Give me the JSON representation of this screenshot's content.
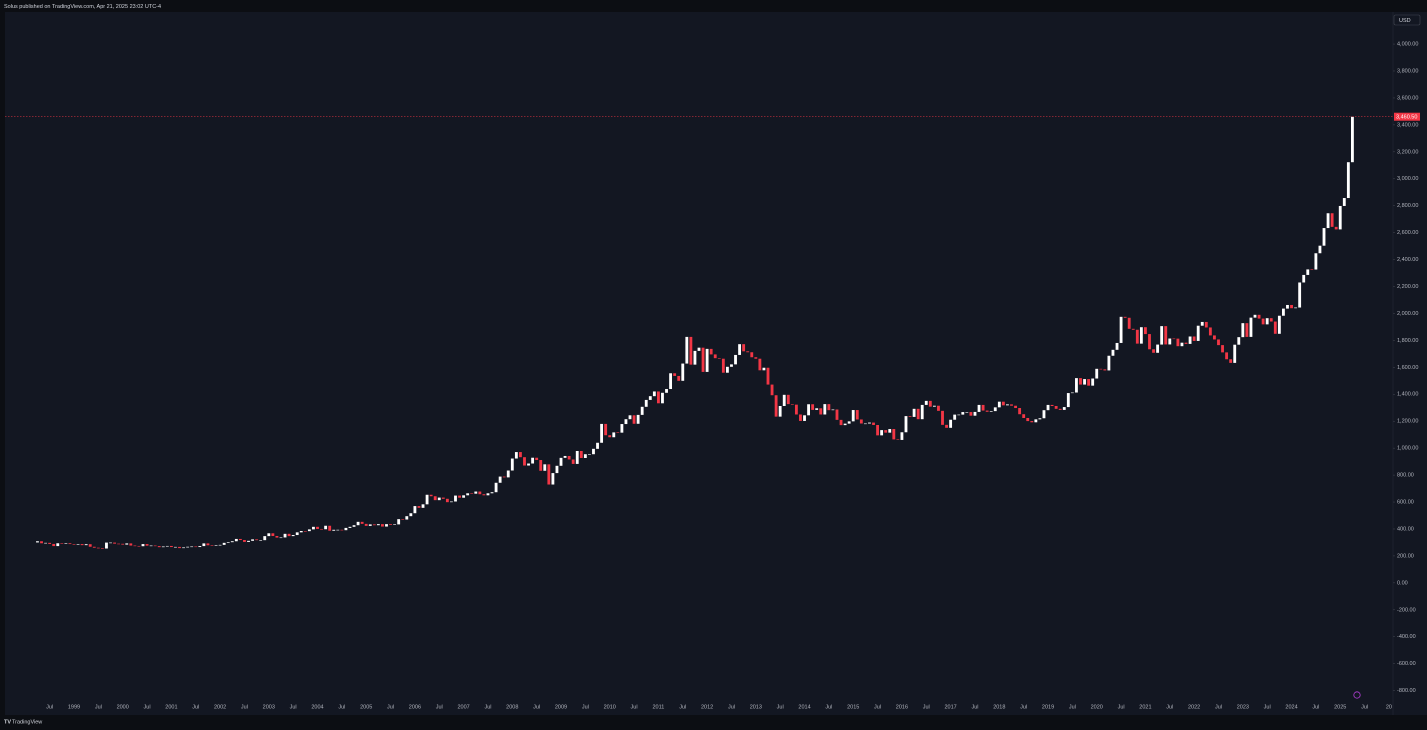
{
  "header": {
    "text": "Solus published on TradingView.com, Apr 21, 2025 23:02 UTC-4"
  },
  "footer": {
    "brand": "TradingView"
  },
  "chart_data": {
    "type": "candlestick",
    "currency": "USD",
    "up_color": "#ffffff",
    "down_color": "#f23645",
    "last_price": {
      "value": 3460.5,
      "label": "3,460.50"
    },
    "xlim": [
      "1997-08",
      "2026-02"
    ],
    "ylim": [
      -981,
      4238
    ],
    "yticks": [
      {
        "value": 4000,
        "label": "4,000.00"
      },
      {
        "value": 3800,
        "label": "3,800.00"
      },
      {
        "value": 3600,
        "label": "3,600.00"
      },
      {
        "value": 3400,
        "label": "3,400.00"
      },
      {
        "value": 3200,
        "label": "3,200.00"
      },
      {
        "value": 3000,
        "label": "3,000.00"
      },
      {
        "value": 2800,
        "label": "2,800.00"
      },
      {
        "value": 2600,
        "label": "2,600.00"
      },
      {
        "value": 2400,
        "label": "2,400.00"
      },
      {
        "value": 2200,
        "label": "2,200.00"
      },
      {
        "value": 2000,
        "label": "2,000.00"
      },
      {
        "value": 1800,
        "label": "1,800.00"
      },
      {
        "value": 1600,
        "label": "1,600.00"
      },
      {
        "value": 1400,
        "label": "1,400.00"
      },
      {
        "value": 1200,
        "label": "1,200.00"
      },
      {
        "value": 1000,
        "label": "1,000.00"
      },
      {
        "value": 800,
        "label": "800.00"
      },
      {
        "value": 600,
        "label": "600.00"
      },
      {
        "value": 400,
        "label": "400.00"
      },
      {
        "value": 200,
        "label": "200.00"
      },
      {
        "value": 0,
        "label": "0.00"
      },
      {
        "value": -200,
        "label": "-200.00"
      },
      {
        "value": -400,
        "label": "-400.00"
      },
      {
        "value": -600,
        "label": "-600.00"
      },
      {
        "value": -800,
        "label": "-800.00"
      }
    ],
    "xticks": [
      {
        "value": "1998-07",
        "label": "Jul"
      },
      {
        "value": "1999-01",
        "label": "1999"
      },
      {
        "value": "1999-07",
        "label": "Jul"
      },
      {
        "value": "2000-01",
        "label": "2000"
      },
      {
        "value": "2000-07",
        "label": "Jul"
      },
      {
        "value": "2001-01",
        "label": "2001"
      },
      {
        "value": "2001-07",
        "label": "Jul"
      },
      {
        "value": "2002-01",
        "label": "2002"
      },
      {
        "value": "2002-07",
        "label": "Jul"
      },
      {
        "value": "2003-01",
        "label": "2003"
      },
      {
        "value": "2003-07",
        "label": "Jul"
      },
      {
        "value": "2004-01",
        "label": "2004"
      },
      {
        "value": "2004-07",
        "label": "Jul"
      },
      {
        "value": "2005-01",
        "label": "2005"
      },
      {
        "value": "2005-07",
        "label": "Jul"
      },
      {
        "value": "2006-01",
        "label": "2006"
      },
      {
        "value": "2006-07",
        "label": "Jul"
      },
      {
        "value": "2007-01",
        "label": "2007"
      },
      {
        "value": "2007-07",
        "label": "Jul"
      },
      {
        "value": "2008-01",
        "label": "2008"
      },
      {
        "value": "2008-07",
        "label": "Jul"
      },
      {
        "value": "2009-01",
        "label": "2009"
      },
      {
        "value": "2009-07",
        "label": "Jul"
      },
      {
        "value": "2010-01",
        "label": "2010"
      },
      {
        "value": "2010-07",
        "label": "Jul"
      },
      {
        "value": "2011-01",
        "label": "2011"
      },
      {
        "value": "2011-07",
        "label": "Jul"
      },
      {
        "value": "2012-01",
        "label": "2012"
      },
      {
        "value": "2012-07",
        "label": "Jul"
      },
      {
        "value": "2013-01",
        "label": "2013"
      },
      {
        "value": "2013-07",
        "label": "Jul"
      },
      {
        "value": "2014-01",
        "label": "2014"
      },
      {
        "value": "2014-07",
        "label": "Jul"
      },
      {
        "value": "2015-01",
        "label": "2015"
      },
      {
        "value": "2015-07",
        "label": "Jul"
      },
      {
        "value": "2016-01",
        "label": "2016"
      },
      {
        "value": "2016-07",
        "label": "Jul"
      },
      {
        "value": "2017-01",
        "label": "2017"
      },
      {
        "value": "2017-07",
        "label": "Jul"
      },
      {
        "value": "2018-01",
        "label": "2018"
      },
      {
        "value": "2018-07",
        "label": "Jul"
      },
      {
        "value": "2019-01",
        "label": "2019"
      },
      {
        "value": "2019-07",
        "label": "Jul"
      },
      {
        "value": "2020-01",
        "label": "2020"
      },
      {
        "value": "2020-07",
        "label": "Jul"
      },
      {
        "value": "2021-01",
        "label": "2021"
      },
      {
        "value": "2021-07",
        "label": "Jul"
      },
      {
        "value": "2022-01",
        "label": "2022"
      },
      {
        "value": "2022-07",
        "label": "Jul"
      },
      {
        "value": "2023-01",
        "label": "2023"
      },
      {
        "value": "2023-07",
        "label": "Jul"
      },
      {
        "value": "2024-01",
        "label": "2024"
      },
      {
        "value": "2024-07",
        "label": "Jul"
      },
      {
        "value": "2025-01",
        "label": "2025"
      },
      {
        "value": "2025-07",
        "label": "Jul"
      },
      {
        "value": "2026-01",
        "label": "20"
      }
    ],
    "x": [
      "1998-04",
      "1998-05",
      "1998-06",
      "1998-07",
      "1998-08",
      "1998-09",
      "1998-10",
      "1998-11",
      "1998-12",
      "1999-01",
      "1999-02",
      "1999-03",
      "1999-04",
      "1999-05",
      "1999-06",
      "1999-07",
      "1999-08",
      "1999-09",
      "1999-10",
      "1999-11",
      "1999-12",
      "2000-01",
      "2000-02",
      "2000-03",
      "2000-04",
      "2000-05",
      "2000-06",
      "2000-07",
      "2000-08",
      "2000-09",
      "2000-10",
      "2000-11",
      "2000-12",
      "2001-01",
      "2001-02",
      "2001-03",
      "2001-04",
      "2001-05",
      "2001-06",
      "2001-07",
      "2001-08",
      "2001-09",
      "2001-10",
      "2001-11",
      "2001-12",
      "2002-01",
      "2002-02",
      "2002-03",
      "2002-04",
      "2002-05",
      "2002-06",
      "2002-07",
      "2002-08",
      "2002-09",
      "2002-10",
      "2002-11",
      "2002-12",
      "2003-01",
      "2003-02",
      "2003-03",
      "2003-04",
      "2003-05",
      "2003-06",
      "2003-07",
      "2003-08",
      "2003-09",
      "2003-10",
      "2003-11",
      "2003-12",
      "2004-01",
      "2004-02",
      "2004-03",
      "2004-04",
      "2004-05",
      "2004-06",
      "2004-07",
      "2004-08",
      "2004-09",
      "2004-10",
      "2004-11",
      "2004-12",
      "2005-01",
      "2005-02",
      "2005-03",
      "2005-04",
      "2005-05",
      "2005-06",
      "2005-07",
      "2005-08",
      "2005-09",
      "2005-10",
      "2005-11",
      "2005-12",
      "2006-01",
      "2006-02",
      "2006-03",
      "2006-04",
      "2006-05",
      "2006-06",
      "2006-07",
      "2006-08",
      "2006-09",
      "2006-10",
      "2006-11",
      "2006-12",
      "2007-01",
      "2007-02",
      "2007-03",
      "2007-04",
      "2007-05",
      "2007-06",
      "2007-07",
      "2007-08",
      "2007-09",
      "2007-10",
      "2007-11",
      "2007-12",
      "2008-01",
      "2008-02",
      "2008-03",
      "2008-04",
      "2008-05",
      "2008-06",
      "2008-07",
      "2008-08",
      "2008-09",
      "2008-10",
      "2008-11",
      "2008-12",
      "2009-01",
      "2009-02",
      "2009-03",
      "2009-04",
      "2009-05",
      "2009-06",
      "2009-07",
      "2009-08",
      "2009-09",
      "2009-10",
      "2009-11",
      "2009-12",
      "2010-01",
      "2010-02",
      "2010-03",
      "2010-04",
      "2010-05",
      "2010-06",
      "2010-07",
      "2010-08",
      "2010-09",
      "2010-10",
      "2010-11",
      "2010-12",
      "2011-01",
      "2011-02",
      "2011-03",
      "2011-04",
      "2011-05",
      "2011-06",
      "2011-07",
      "2011-08",
      "2011-09",
      "2011-10",
      "2011-11",
      "2011-12",
      "2012-01",
      "2012-02",
      "2012-03",
      "2012-04",
      "2012-05",
      "2012-06",
      "2012-07",
      "2012-08",
      "2012-09",
      "2012-10",
      "2012-11",
      "2012-12",
      "2013-01",
      "2013-02",
      "2013-03",
      "2013-04",
      "2013-05",
      "2013-06",
      "2013-07",
      "2013-08",
      "2013-09",
      "2013-10",
      "2013-11",
      "2013-12",
      "2014-01",
      "2014-02",
      "2014-03",
      "2014-04",
      "2014-05",
      "2014-06",
      "2014-07",
      "2014-08",
      "2014-09",
      "2014-10",
      "2014-11",
      "2014-12",
      "2015-01",
      "2015-02",
      "2015-03",
      "2015-04",
      "2015-05",
      "2015-06",
      "2015-07",
      "2015-08",
      "2015-09",
      "2015-10",
      "2015-11",
      "2015-12",
      "2016-01",
      "2016-02",
      "2016-03",
      "2016-04",
      "2016-05",
      "2016-06",
      "2016-07",
      "2016-08",
      "2016-09",
      "2016-10",
      "2016-11",
      "2016-12",
      "2017-01",
      "2017-02",
      "2017-03",
      "2017-04",
      "2017-05",
      "2017-06",
      "2017-07",
      "2017-08",
      "2017-09",
      "2017-10",
      "2017-11",
      "2017-12",
      "2018-01",
      "2018-02",
      "2018-03",
      "2018-04",
      "2018-05",
      "2018-06",
      "2018-07",
      "2018-08",
      "2018-09",
      "2018-10",
      "2018-11",
      "2018-12",
      "2019-01",
      "2019-02",
      "2019-03",
      "2019-04",
      "2019-05",
      "2019-06",
      "2019-07",
      "2019-08",
      "2019-09",
      "2019-10",
      "2019-11",
      "2019-12",
      "2020-01",
      "2020-02",
      "2020-03",
      "2020-04",
      "2020-05",
      "2020-06",
      "2020-07",
      "2020-08",
      "2020-09",
      "2020-10",
      "2020-11",
      "2020-12",
      "2021-01",
      "2021-02",
      "2021-03",
      "2021-04",
      "2021-05",
      "2021-06",
      "2021-07",
      "2021-08",
      "2021-09",
      "2021-10",
      "2021-11",
      "2021-12",
      "2022-01",
      "2022-02",
      "2022-03",
      "2022-04",
      "2022-05",
      "2022-06",
      "2022-07",
      "2022-08",
      "2022-09",
      "2022-10",
      "2022-11",
      "2022-12",
      "2023-01",
      "2023-02",
      "2023-03",
      "2023-04",
      "2023-05",
      "2023-06",
      "2023-07",
      "2023-08",
      "2023-09",
      "2023-10",
      "2023-11",
      "2023-12",
      "2024-01",
      "2024-02",
      "2024-03",
      "2024-04",
      "2024-05",
      "2024-06",
      "2024-07",
      "2024-08",
      "2024-09",
      "2024-10",
      "2024-11",
      "2024-12",
      "2025-01",
      "2025-02",
      "2025-03",
      "2025-04"
    ],
    "open": [
      300,
      309,
      294,
      297,
      289,
      273,
      294,
      292,
      294,
      288,
      287,
      288,
      280,
      287,
      268,
      261,
      256,
      255,
      299,
      299,
      291,
      290,
      284,
      293,
      277,
      274,
      272,
      288,
      276,
      277,
      273,
      265,
      270,
      274,
      266,
      267,
      258,
      263,
      268,
      270,
      266,
      273,
      293,
      279,
      275,
      279,
      282,
      297,
      302,
      309,
      326,
      318,
      304,
      312,
      323,
      317,
      317,
      347,
      368,
      348,
      336,
      337,
      364,
      347,
      355,
      375,
      385,
      384,
      397,
      416,
      400,
      398,
      424,
      387,
      394,
      394,
      391,
      408,
      416,
      428,
      453,
      438,
      423,
      434,
      428,
      436,
      418,
      436,
      430,
      434,
      473,
      470,
      495,
      517,
      570,
      557,
      583,
      654,
      643,
      614,
      633,
      624,
      599,
      604,
      648,
      632,
      650,
      665,
      662,
      678,
      658,
      650,
      665,
      673,
      743,
      789,
      783,
      834,
      923,
      971,
      933,
      871,
      886,
      929,
      912,
      832,
      880,
      730,
      815,
      869,
      928,
      942,
      916,
      883,
      979,
      927,
      955,
      955,
      995,
      1040,
      1180,
      1096,
      1081,
      1117,
      1115,
      1179,
      1215,
      1244,
      1181,
      1247,
      1307,
      1358,
      1386,
      1421,
      1333,
      1411,
      1439,
      1556,
      1536,
      1500,
      1628,
      1826,
      1620,
      1722,
      1746,
      1566,
      1737,
      1696,
      1668,
      1664,
      1560,
      1604,
      1622,
      1692,
      1772,
      1719,
      1712,
      1675,
      1664,
      1578,
      1597,
      1472,
      1393,
      1234,
      1313,
      1396,
      1327,
      1323,
      1250,
      1202,
      1244,
      1326,
      1284,
      1296,
      1250,
      1327,
      1282,
      1287,
      1210,
      1171,
      1182,
      1199,
      1283,
      1213,
      1183,
      1183,
      1190,
      1172,
      1095,
      1134,
      1115,
      1142,
      1065,
      1061,
      1118,
      1238,
      1232,
      1292,
      1215,
      1321,
      1351,
      1308,
      1315,
      1277,
      1173,
      1151,
      1211,
      1249,
      1249,
      1268,
      1268,
      1241,
      1269,
      1321,
      1279,
      1270,
      1275,
      1303,
      1345,
      1318,
      1325,
      1315,
      1298,
      1252,
      1224,
      1201,
      1192,
      1214,
      1222,
      1282,
      1321,
      1313,
      1292,
      1284,
      1305,
      1409,
      1413,
      1520,
      1472,
      1513,
      1464,
      1517,
      1589,
      1585,
      1577,
      1686,
      1730,
      1781,
      1975,
      1968,
      1886,
      1879,
      1776,
      1898,
      1847,
      1734,
      1708,
      1769,
      1906,
      1770,
      1814,
      1813,
      1757,
      1783,
      1774,
      1829,
      1796,
      1909,
      1937,
      1896,
      1837,
      1807,
      1765,
      1711,
      1660,
      1633,
      1768,
      1824,
      1928,
      1826,
      1969,
      1990,
      1962,
      1919,
      1965,
      1940,
      1849,
      1983,
      2036,
      2063,
      2039,
      2044,
      2230,
      2286,
      2327,
      2326,
      2447,
      2503,
      2634,
      2744,
      2643,
      2624,
      2798,
      2857,
      3123
    ],
    "close": [
      309,
      294,
      297,
      289,
      273,
      294,
      292,
      294,
      288,
      287,
      288,
      280,
      287,
      268,
      261,
      256,
      255,
      299,
      299,
      291,
      290,
      284,
      293,
      277,
      274,
      272,
      288,
      276,
      277,
      273,
      265,
      270,
      274,
      266,
      267,
      258,
      263,
      268,
      270,
      266,
      273,
      293,
      279,
      275,
      279,
      282,
      297,
      302,
      309,
      326,
      318,
      304,
      312,
      323,
      317,
      317,
      347,
      368,
      348,
      336,
      337,
      364,
      347,
      355,
      375,
      385,
      384,
      397,
      416,
      400,
      398,
      424,
      387,
      394,
      394,
      391,
      408,
      416,
      428,
      453,
      438,
      423,
      434,
      428,
      436,
      418,
      436,
      430,
      434,
      473,
      470,
      495,
      517,
      570,
      557,
      583,
      654,
      643,
      614,
      633,
      624,
      599,
      604,
      648,
      632,
      650,
      665,
      662,
      678,
      658,
      650,
      665,
      673,
      743,
      789,
      783,
      834,
      923,
      971,
      933,
      871,
      886,
      929,
      912,
      832,
      880,
      730,
      815,
      869,
      928,
      942,
      916,
      883,
      979,
      927,
      955,
      955,
      995,
      1040,
      1180,
      1096,
      1081,
      1117,
      1115,
      1179,
      1215,
      1244,
      1181,
      1247,
      1307,
      1358,
      1386,
      1421,
      1333,
      1411,
      1439,
      1556,
      1536,
      1500,
      1628,
      1826,
      1620,
      1722,
      1746,
      1566,
      1737,
      1696,
      1668,
      1664,
      1560,
      1604,
      1622,
      1692,
      1772,
      1719,
      1712,
      1675,
      1664,
      1578,
      1597,
      1472,
      1393,
      1234,
      1313,
      1396,
      1327,
      1323,
      1250,
      1202,
      1244,
      1326,
      1284,
      1296,
      1250,
      1327,
      1282,
      1287,
      1210,
      1171,
      1182,
      1199,
      1283,
      1213,
      1183,
      1183,
      1190,
      1172,
      1095,
      1134,
      1115,
      1142,
      1065,
      1061,
      1118,
      1238,
      1232,
      1292,
      1215,
      1321,
      1351,
      1308,
      1315,
      1277,
      1173,
      1151,
      1211,
      1249,
      1249,
      1268,
      1268,
      1241,
      1269,
      1321,
      1279,
      1270,
      1275,
      1303,
      1345,
      1318,
      1325,
      1315,
      1298,
      1252,
      1224,
      1201,
      1192,
      1214,
      1222,
      1282,
      1321,
      1313,
      1292,
      1284,
      1305,
      1409,
      1413,
      1520,
      1472,
      1513,
      1464,
      1517,
      1589,
      1585,
      1577,
      1686,
      1730,
      1781,
      1975,
      1968,
      1886,
      1879,
      1776,
      1898,
      1847,
      1734,
      1708,
      1769,
      1906,
      1770,
      1814,
      1813,
      1757,
      1783,
      1774,
      1829,
      1796,
      1909,
      1937,
      1896,
      1837,
      1807,
      1765,
      1711,
      1660,
      1633,
      1768,
      1824,
      1928,
      1826,
      1969,
      1990,
      1962,
      1919,
      1965,
      1940,
      1849,
      1983,
      2036,
      2063,
      2039,
      2044,
      2230,
      2286,
      2327,
      2326,
      2447,
      2503,
      2634,
      2744,
      2643,
      2624,
      2798,
      2857,
      3123,
      3460.5
    ]
  }
}
